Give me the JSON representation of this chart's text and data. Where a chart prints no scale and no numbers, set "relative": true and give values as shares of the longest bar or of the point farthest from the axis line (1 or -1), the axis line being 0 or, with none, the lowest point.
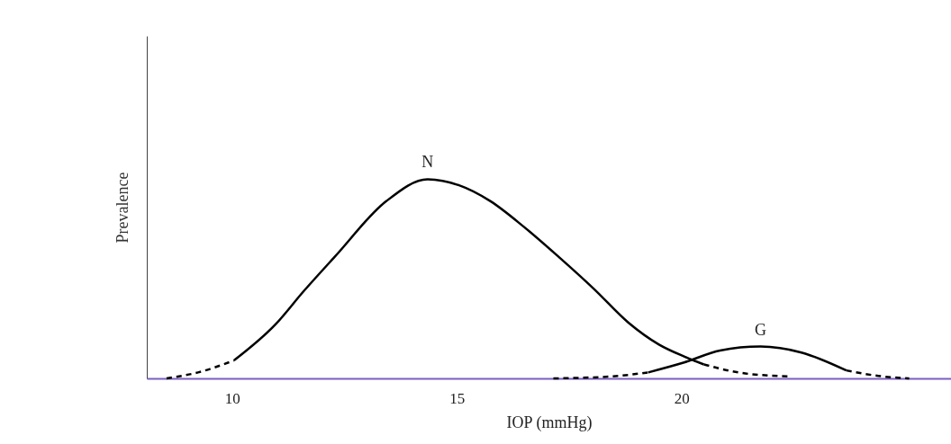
{
  "chart_data": {
    "type": "line",
    "xlabel": "IOP (mmHg)",
    "ylabel": "Prevalence",
    "relative": true,
    "xlim": [
      8.1,
      26
    ],
    "xticks": [
      10,
      15,
      20
    ],
    "grid": false,
    "tick_labels": "x",
    "marker": "none",
    "series": [
      {
        "name": "N",
        "color": "#000000",
        "line_style": "solid",
        "x": [
          10.04,
          10.96,
          11.6,
          12.28,
          13.43,
          14.35,
          15.05,
          15.75,
          16.5,
          17.27,
          18.05,
          18.82,
          19.5,
          20.06,
          20.5
        ],
        "values": [
          0.09,
          0.27,
          0.44,
          0.61,
          0.89,
          1.0,
          0.97,
          0.89,
          0.76,
          0.61,
          0.45,
          0.28,
          0.17,
          0.11,
          0.07
        ]
      },
      {
        "color": "#000000",
        "line_style": "dashed",
        "x": [
          8.54,
          9.24,
          10.04
        ],
        "values": [
          0.0,
          0.03,
          0.09
        ]
      },
      {
        "color": "#000000",
        "line_style": "dashed",
        "x": [
          20.5,
          21.26,
          22.36
        ],
        "values": [
          0.07,
          0.03,
          0.01
        ]
      },
      {
        "name": "G",
        "color": "#000000",
        "line_style": "solid",
        "x": [
          19.26,
          20.06,
          20.86,
          21.76,
          22.67,
          23.67
        ],
        "values": [
          0.03,
          0.08,
          0.14,
          0.16,
          0.13,
          0.04
        ]
      },
      {
        "color": "#000000",
        "line_style": "dashed",
        "x": [
          17.15,
          18.46,
          19.26
        ],
        "values": [
          0.0,
          0.01,
          0.03
        ]
      },
      {
        "color": "#000000",
        "line_style": "dashed",
        "x": [
          23.67,
          24.47,
          25.07
        ],
        "values": [
          0.04,
          0.01,
          0.0
        ]
      }
    ]
  }
}
